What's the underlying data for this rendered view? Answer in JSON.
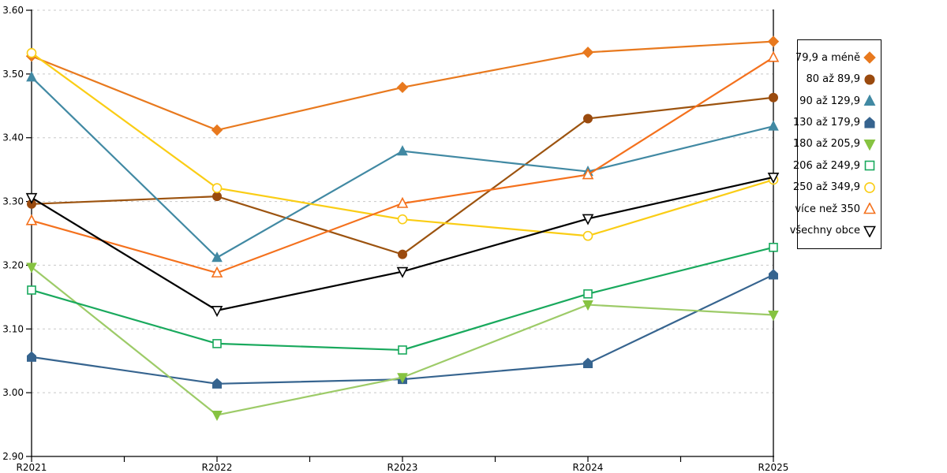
{
  "chart_data": {
    "type": "line",
    "title": "",
    "xlabel": "",
    "ylabel": "",
    "x": [
      "R2021",
      "R2022",
      "R2023",
      "R2024",
      "R2025"
    ],
    "ylim": [
      2.9,
      3.6
    ],
    "y_ticks": [
      "2.90",
      "3.00",
      "3.10",
      "3.20",
      "3.30",
      "3.40",
      "3.50",
      "3.60"
    ],
    "grid": "horizontal-dashed",
    "grid_color": "#c8c8c8",
    "axis_color": "#000000",
    "legend_position": "right",
    "series": [
      {
        "name": "79,9 a méně",
        "color": "#e8791e",
        "marker": "diamond",
        "filled": true,
        "values": [
          3.528,
          3.412,
          3.479,
          3.534,
          3.551
        ]
      },
      {
        "name": "80 až 89,9",
        "color": "#9c530f",
        "marker_color": "#9a4a0e",
        "marker": "circle",
        "filled": true,
        "values": [
          3.296,
          3.308,
          3.217,
          3.43,
          3.463
        ]
      },
      {
        "name": "90 až 129,9",
        "color": "#4189a3",
        "marker": "triangle-up",
        "filled": true,
        "values": [
          3.495,
          3.212,
          3.379,
          3.347,
          3.418
        ]
      },
      {
        "name": "130 až 179,9",
        "color": "#36648f",
        "marker": "pentagon",
        "filled": true,
        "values": [
          3.056,
          3.014,
          3.021,
          3.046,
          3.185
        ]
      },
      {
        "name": "180 až 205,9",
        "color": "#9dcb68",
        "marker_color": "#86c341",
        "marker": "triangle-down",
        "filled": true,
        "values": [
          3.197,
          2.965,
          3.024,
          3.138,
          3.122
        ]
      },
      {
        "name": "206 až 249,9",
        "color": "#19a95d",
        "marker": "square",
        "filled": false,
        "values": [
          3.161,
          3.077,
          3.067,
          3.155,
          3.228
        ]
      },
      {
        "name": "250 až 349,9",
        "color": "#facd15",
        "marker": "circle",
        "filled": false,
        "values": [
          3.533,
          3.321,
          3.272,
          3.246,
          3.334
        ]
      },
      {
        "name": "více než 350",
        "color": "#f4711d",
        "marker": "triangle-up",
        "filled": false,
        "values": [
          3.27,
          3.188,
          3.297,
          3.342,
          3.526
        ]
      },
      {
        "name": "všechny obce",
        "color": "#000000",
        "marker": "triangle-down",
        "filled": false,
        "values": [
          3.306,
          3.129,
          3.19,
          3.273,
          3.338
        ]
      }
    ]
  }
}
